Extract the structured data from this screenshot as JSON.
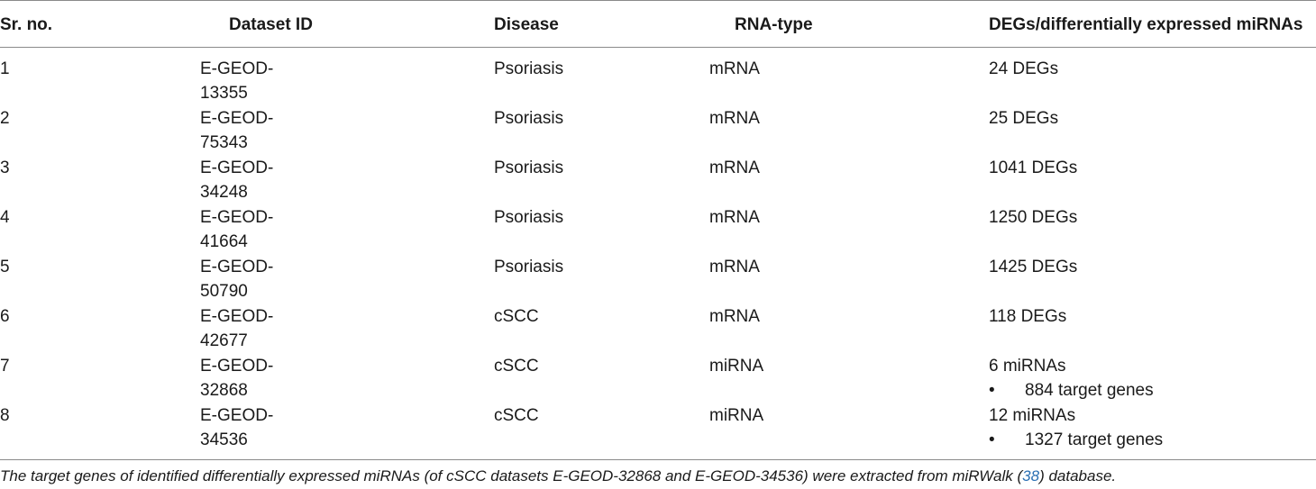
{
  "table": {
    "headers": [
      "Sr. no.",
      "Dataset ID",
      "Disease",
      "RNA-type",
      "DEGs/differentially expressed miRNAs"
    ],
    "rows": [
      {
        "sr": "1",
        "id_line1": "E-GEOD-",
        "id_line2": "13355",
        "disease": "Psoriasis",
        "rna": "mRNA",
        "result": "24 DEGs",
        "bullet": ""
      },
      {
        "sr": "2",
        "id_line1": "E-GEOD-",
        "id_line2": "75343",
        "disease": "Psoriasis",
        "rna": "mRNA",
        "result": "25 DEGs",
        "bullet": ""
      },
      {
        "sr": "3",
        "id_line1": "E-GEOD-",
        "id_line2": "34248",
        "disease": "Psoriasis",
        "rna": "mRNA",
        "result": "1041 DEGs",
        "bullet": ""
      },
      {
        "sr": "4",
        "id_line1": "E-GEOD-",
        "id_line2": "41664",
        "disease": "Psoriasis",
        "rna": "mRNA",
        "result": "1250 DEGs",
        "bullet": ""
      },
      {
        "sr": "5",
        "id_line1": "E-GEOD-",
        "id_line2": "50790",
        "disease": "Psoriasis",
        "rna": "mRNA",
        "result": "1425 DEGs",
        "bullet": ""
      },
      {
        "sr": "6",
        "id_line1": "E-GEOD-",
        "id_line2": "42677",
        "disease": "cSCC",
        "rna": "mRNA",
        "result": "118 DEGs",
        "bullet": ""
      },
      {
        "sr": "7",
        "id_line1": "E-GEOD-",
        "id_line2": "32868",
        "disease": "cSCC",
        "rna": "miRNA",
        "result": "6 miRNAs",
        "bullet": "884 target genes"
      },
      {
        "sr": "8",
        "id_line1": "E-GEOD-",
        "id_line2": "34536",
        "disease": "cSCC",
        "rna": "miRNA",
        "result": "12 miRNAs",
        "bullet": "1327 target genes"
      }
    ],
    "bullet_glyph": "•"
  },
  "footnote": {
    "before": "The target genes of identified differentially expressed miRNAs (of cSCC datasets E-GEOD-32868 and E-GEOD-34536) were extracted from miRWalk (",
    "ref": "38",
    "after": ") database."
  }
}
